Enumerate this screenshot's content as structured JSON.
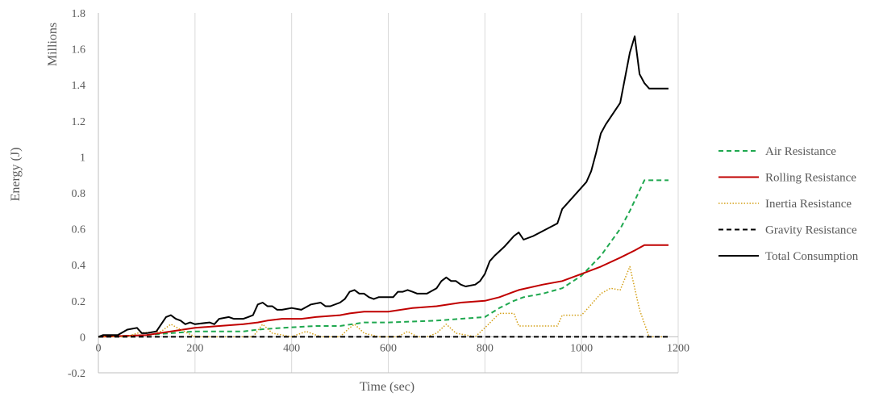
{
  "chart_data": {
    "type": "line",
    "xlabel": "Time (sec)",
    "ylabel": "Energy  (J)",
    "yunit": "Millions",
    "xlim": [
      0,
      1200
    ],
    "ylim": [
      -0.2,
      1.8
    ],
    "xticks": [
      "0",
      "200",
      "400",
      "600",
      "800",
      "1000",
      "1200"
    ],
    "yticks": [
      "-0.2",
      "0",
      "0.2",
      "0.4",
      "0.6",
      "0.8",
      "1",
      "1.2",
      "1.4",
      "1.6",
      "1.8"
    ],
    "grid": "vertical",
    "legend_position": "right",
    "series": [
      {
        "name": "Air Resistance",
        "color": "#1fa84f",
        "dash": "dashed",
        "x": [
          0,
          100,
          150,
          200,
          300,
          330,
          380,
          450,
          500,
          550,
          600,
          700,
          750,
          800,
          830,
          860,
          880,
          920,
          960,
          1000,
          1040,
          1080,
          1100,
          1130,
          1180
        ],
        "y": [
          0,
          0.01,
          0.02,
          0.03,
          0.03,
          0.04,
          0.05,
          0.06,
          0.06,
          0.08,
          0.08,
          0.09,
          0.1,
          0.11,
          0.16,
          0.2,
          0.22,
          0.24,
          0.27,
          0.34,
          0.45,
          0.6,
          0.7,
          0.87,
          0.87
        ]
      },
      {
        "name": "Rolling Resistance",
        "color": "#c00000",
        "dash": "solid",
        "x": [
          0,
          100,
          150,
          200,
          250,
          300,
          330,
          350,
          380,
          420,
          450,
          500,
          520,
          550,
          600,
          650,
          700,
          750,
          800,
          830,
          870,
          920,
          960,
          1000,
          1040,
          1080,
          1110,
          1130,
          1180
        ],
        "y": [
          0,
          0.01,
          0.03,
          0.05,
          0.06,
          0.07,
          0.08,
          0.09,
          0.1,
          0.1,
          0.11,
          0.12,
          0.13,
          0.14,
          0.14,
          0.16,
          0.17,
          0.19,
          0.2,
          0.22,
          0.26,
          0.29,
          0.31,
          0.35,
          0.39,
          0.44,
          0.48,
          0.51,
          0.51
        ]
      },
      {
        "name": "Inertia Resistance",
        "color": "#d4a017",
        "dash": "dotted",
        "x": [
          0,
          60,
          80,
          130,
          150,
          170,
          200,
          320,
          340,
          360,
          400,
          430,
          460,
          500,
          520,
          530,
          550,
          580,
          620,
          640,
          660,
          680,
          700,
          720,
          740,
          780,
          800,
          830,
          860,
          870,
          880,
          950,
          960,
          1000,
          1040,
          1060,
          1080,
          1100,
          1120,
          1140,
          1180
        ],
        "y": [
          0,
          0,
          0.02,
          0.03,
          0.07,
          0.04,
          0,
          0,
          0.07,
          0.02,
          0,
          0.03,
          0,
          0,
          0.05,
          0.07,
          0.02,
          0,
          0,
          0.03,
          0,
          0,
          0.02,
          0.07,
          0.02,
          0,
          0.05,
          0.13,
          0.13,
          0.06,
          0.06,
          0.06,
          0.12,
          0.12,
          0.24,
          0.27,
          0.26,
          0.39,
          0.15,
          0,
          0
        ]
      },
      {
        "name": "Gravity Resistance",
        "color": "#000000",
        "dash": "dashed",
        "x": [
          0,
          1180
        ],
        "y": [
          0,
          0
        ]
      },
      {
        "name": "Total Consumption",
        "color": "#000000",
        "dash": "solid",
        "x": [
          0,
          10,
          40,
          60,
          80,
          90,
          100,
          120,
          130,
          140,
          150,
          160,
          170,
          180,
          190,
          200,
          230,
          240,
          250,
          270,
          280,
          300,
          310,
          320,
          330,
          340,
          350,
          360,
          370,
          380,
          400,
          420,
          440,
          460,
          470,
          480,
          500,
          510,
          520,
          530,
          540,
          550,
          560,
          570,
          580,
          590,
          610,
          620,
          630,
          640,
          650,
          660,
          680,
          700,
          710,
          720,
          730,
          740,
          750,
          760,
          780,
          790,
          800,
          810,
          820,
          840,
          860,
          870,
          880,
          900,
          950,
          960,
          1000,
          1010,
          1020,
          1030,
          1040,
          1050,
          1080,
          1090,
          1100,
          1110,
          1120,
          1130,
          1140,
          1180
        ],
        "y": [
          0,
          0.01,
          0.01,
          0.04,
          0.05,
          0.02,
          0.02,
          0.03,
          0.07,
          0.11,
          0.12,
          0.1,
          0.09,
          0.07,
          0.08,
          0.07,
          0.08,
          0.07,
          0.1,
          0.11,
          0.1,
          0.1,
          0.11,
          0.12,
          0.18,
          0.19,
          0.17,
          0.17,
          0.15,
          0.15,
          0.16,
          0.15,
          0.18,
          0.19,
          0.17,
          0.17,
          0.19,
          0.21,
          0.25,
          0.26,
          0.24,
          0.24,
          0.22,
          0.21,
          0.22,
          0.22,
          0.22,
          0.25,
          0.25,
          0.26,
          0.25,
          0.24,
          0.24,
          0.27,
          0.31,
          0.33,
          0.31,
          0.31,
          0.29,
          0.28,
          0.29,
          0.31,
          0.35,
          0.42,
          0.45,
          0.5,
          0.56,
          0.58,
          0.54,
          0.56,
          0.63,
          0.71,
          0.83,
          0.86,
          0.92,
          1.02,
          1.13,
          1.18,
          1.3,
          1.44,
          1.58,
          1.67,
          1.46,
          1.41,
          1.38,
          1.38
        ]
      }
    ]
  }
}
